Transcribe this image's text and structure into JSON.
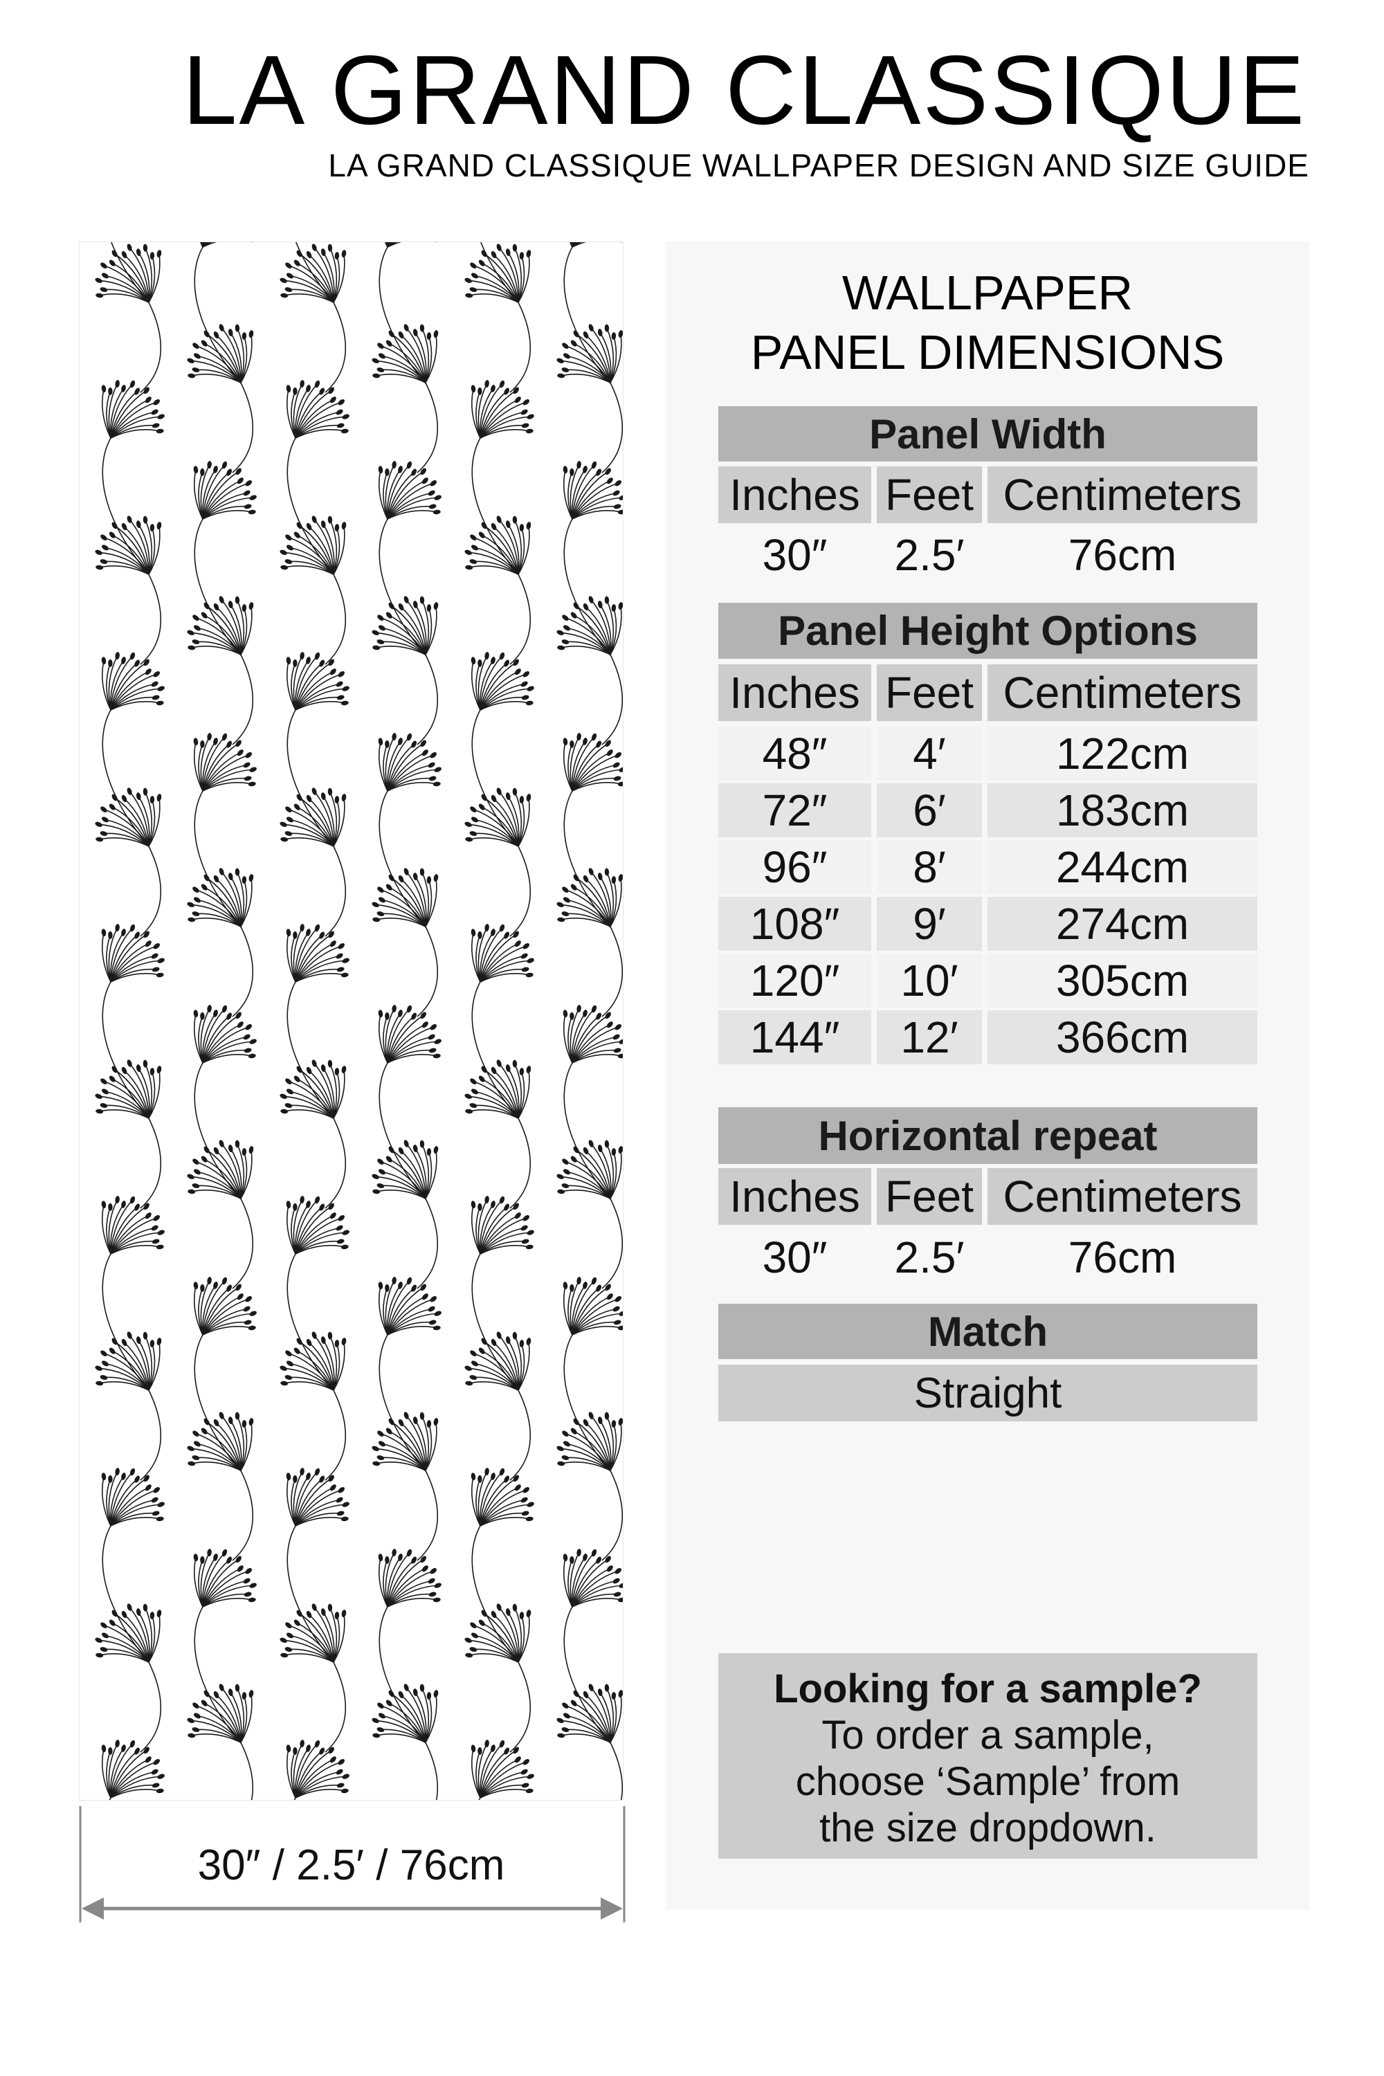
{
  "header": {
    "title": "LA GRAND CLASSIQUE",
    "subtitle": "LA GRAND CLASSIQUE WALLPAPER DESIGN AND SIZE GUIDE"
  },
  "preview": {
    "pattern": "dandelion-fan-line-art",
    "colors": {
      "ink": "#1a1a1a",
      "background": "#ffffff"
    },
    "width_label": "30″ / 2.5′ / 76cm",
    "arrow_color": "#888888"
  },
  "panel": {
    "heading_line1": "WALLPAPER",
    "heading_line2": "PANEL DIMENSIONS",
    "columns": [
      "Inches",
      "Feet",
      "Centimeters"
    ],
    "panel_width": {
      "title": "Panel Width",
      "values": [
        "30″",
        "2.5′",
        "76cm"
      ]
    },
    "panel_height": {
      "title": "Panel Height Options",
      "rows": [
        [
          "48″",
          "4′",
          "122cm"
        ],
        [
          "72″",
          "6′",
          "183cm"
        ],
        [
          "96″",
          "8′",
          "244cm"
        ],
        [
          "108″",
          "9′",
          "274cm"
        ],
        [
          "120″",
          "10′",
          "305cm"
        ],
        [
          "144″",
          "12′",
          "366cm"
        ]
      ]
    },
    "horizontal_repeat": {
      "title": "Horizontal repeat",
      "values": [
        "30″",
        "2.5′",
        "76cm"
      ]
    },
    "match": {
      "title": "Match",
      "value": "Straight"
    },
    "sample": {
      "title": "Looking for a sample?",
      "lines": [
        "To order a sample,",
        "choose ‘Sample’ from",
        "the size dropdown."
      ]
    },
    "colors": {
      "header": "#b3b3b3",
      "subheader": "#cccccc",
      "panel_bg": "#f7f7f7"
    }
  }
}
